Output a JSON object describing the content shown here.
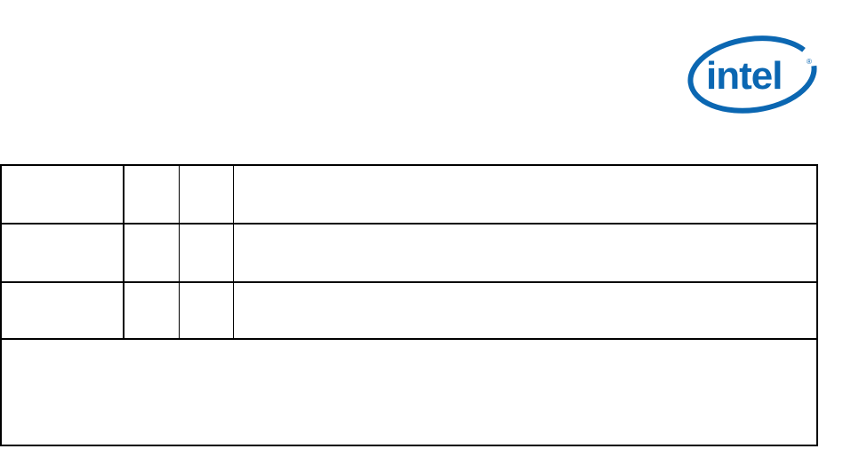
{
  "logo": {
    "text": "intel",
    "mark": "®",
    "color": "#0b67b2"
  },
  "table": {
    "rows": [
      [
        "",
        "",
        "",
        ""
      ],
      [
        "",
        "",
        "",
        ""
      ],
      [
        "",
        "",
        "",
        ""
      ]
    ],
    "footer": ""
  }
}
